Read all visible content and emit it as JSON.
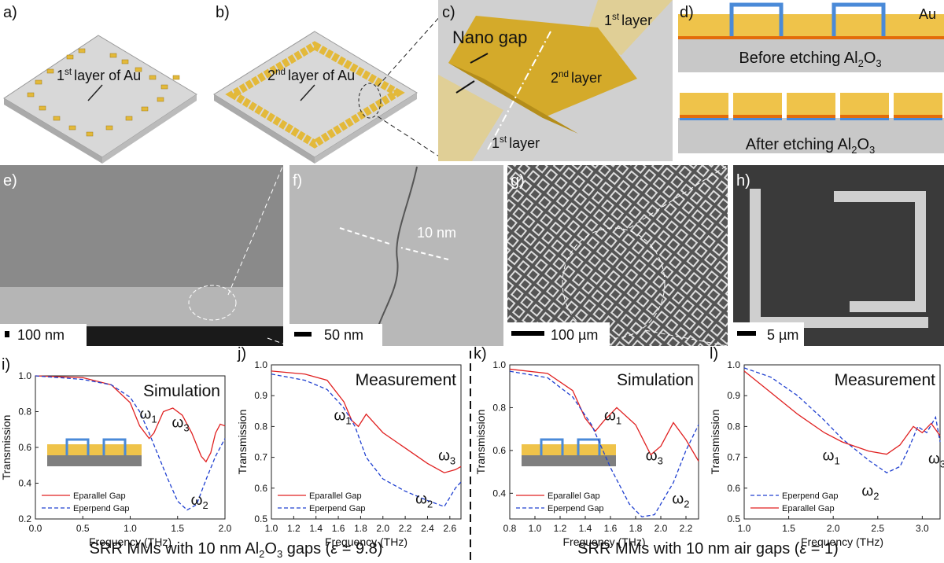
{
  "panels": {
    "a": {
      "label": "a)",
      "n": "1",
      "sup": "st",
      "text": "layer of Au"
    },
    "b": {
      "label": "b)",
      "n": "2",
      "sup": "nd",
      "text": "layer of Au"
    },
    "c": {
      "label": "c)",
      "gap": "Nano gap",
      "l1": {
        "n": "1",
        "sup": "st",
        "text": "layer"
      },
      "l2": {
        "n": "2",
        "sup": "nd",
        "text": "layer"
      }
    },
    "d": {
      "label": "d)",
      "au": "Au",
      "before": {
        "text": "Before etching Al",
        "s1": "2",
        "o": "O",
        "s2": "3"
      },
      "after": {
        "text": "After etching Al",
        "s1": "2",
        "o": "O",
        "s2": "3"
      }
    },
    "e": {
      "label": "e)",
      "scale": "100 nm"
    },
    "f": {
      "label": "f)",
      "gap": "10 nm",
      "scale": "50 nm"
    },
    "g": {
      "label": "g)",
      "scale": "100 µm"
    },
    "h": {
      "label": "h)",
      "scale": "5 µm"
    }
  },
  "captions": [
    {
      "text": "SRR MMs with 10 nm Al",
      "s1": "2",
      "o": "O",
      "s2": "3",
      "rest": " gaps (",
      "eps": "ε",
      "end": " = 9.8)"
    },
    {
      "text": "SRR MMs with 10 nm air gaps (",
      "eps": "ε",
      "end": " = 1)"
    }
  ],
  "chart_data": [
    {
      "type": "line",
      "panel": "i)",
      "title": "Simulation",
      "xlabel": "Frequency (THz)",
      "ylabel": "Transmission",
      "xlim": [
        0,
        2.0
      ],
      "xticks": [
        {
          "value": 0,
          "label": "0.0"
        },
        0.5,
        {
          "value": 1,
          "label": "1.0"
        },
        1.5,
        {
          "value": 2,
          "label": "2.0"
        }
      ],
      "ylim": [
        0.2,
        1.0
      ],
      "yticks": [
        0.2,
        0.4,
        0.6,
        0.8,
        {
          "value": 1,
          "label": "1.0"
        }
      ],
      "legend": "lower left",
      "annotations": [
        {
          "text": "ω",
          "sub": "1"
        },
        {
          "text": "ω",
          "sub": "3"
        },
        {
          "text": "ω",
          "sub": "2"
        }
      ],
      "series": [
        {
          "name": "Eparallel Gap",
          "color": "#e02020",
          "dash": false,
          "x": [
            0,
            0.5,
            0.8,
            1.0,
            1.1,
            1.2,
            1.25,
            1.35,
            1.45,
            1.55,
            1.65,
            1.75,
            1.8,
            1.85,
            1.9,
            1.95,
            2.0
          ],
          "values": [
            1.0,
            0.99,
            0.95,
            0.85,
            0.72,
            0.65,
            0.68,
            0.8,
            0.82,
            0.78,
            0.68,
            0.55,
            0.52,
            0.57,
            0.68,
            0.73,
            0.72
          ]
        },
        {
          "name": "Eperpend Gap",
          "color": "#2040d0",
          "dash": true,
          "x": [
            0,
            0.5,
            0.8,
            1.0,
            1.1,
            1.2,
            1.3,
            1.4,
            1.5,
            1.6,
            1.7,
            1.8,
            1.9,
            2.0
          ],
          "values": [
            1.0,
            0.98,
            0.95,
            0.88,
            0.8,
            0.68,
            0.55,
            0.42,
            0.3,
            0.25,
            0.28,
            0.42,
            0.55,
            0.65
          ]
        }
      ]
    },
    {
      "type": "line",
      "panel": "j)",
      "title": "Measurement",
      "xlabel": "Frequency (THz)",
      "ylabel": "Transmission",
      "xlim": [
        1.0,
        2.7
      ],
      "xticks": [
        {
          "value": 1,
          "label": "1.0"
        },
        1.2,
        1.4,
        1.6,
        1.8,
        {
          "value": 2,
          "label": "2.0"
        },
        2.2,
        2.4,
        2.6
      ],
      "ylim": [
        0.5,
        1.0
      ],
      "yticks": [
        0.5,
        0.6,
        0.7,
        0.8,
        0.9,
        {
          "value": 1,
          "label": "1.0"
        }
      ],
      "legend": "lower left",
      "annotations": [
        {
          "text": "ω",
          "sub": "1"
        },
        {
          "text": "ω",
          "sub": "3"
        },
        {
          "text": "ω",
          "sub": "2"
        }
      ],
      "series": [
        {
          "name": "Eparallel Gap",
          "color": "#e02020",
          "dash": false,
          "x": [
            1.0,
            1.3,
            1.5,
            1.65,
            1.72,
            1.78,
            1.85,
            2.0,
            2.2,
            2.4,
            2.55,
            2.65,
            2.7
          ],
          "values": [
            0.98,
            0.97,
            0.95,
            0.88,
            0.82,
            0.8,
            0.84,
            0.78,
            0.73,
            0.68,
            0.65,
            0.66,
            0.67
          ]
        },
        {
          "name": "Eperpend Gap",
          "color": "#2040d0",
          "dash": true,
          "x": [
            1.0,
            1.3,
            1.5,
            1.65,
            1.75,
            1.85,
            2.0,
            2.2,
            2.4,
            2.55,
            2.6,
            2.65,
            2.7
          ],
          "values": [
            0.97,
            0.95,
            0.92,
            0.86,
            0.8,
            0.7,
            0.63,
            0.59,
            0.56,
            0.54,
            0.57,
            0.6,
            0.62
          ]
        }
      ]
    },
    {
      "type": "line",
      "panel": "k)",
      "title": "Simulation",
      "xlabel": "Frequency (THz)",
      "ylabel": "Transmission",
      "xlim": [
        0.8,
        2.3
      ],
      "xticks": [
        0.8,
        {
          "value": 1,
          "label": "1.0"
        },
        1.2,
        1.4,
        1.6,
        1.8,
        {
          "value": 2,
          "label": "2.0"
        },
        2.2
      ],
      "ylim": [
        0.28,
        1.0
      ],
      "yticks": [
        0.4,
        0.6,
        0.8,
        {
          "value": 1,
          "label": "1.0"
        }
      ],
      "legend": "lower left",
      "annotations": [
        {
          "text": "ω",
          "sub": "1"
        },
        {
          "text": "ω",
          "sub": "3"
        },
        {
          "text": "ω",
          "sub": "2"
        }
      ],
      "series": [
        {
          "name": "Eparallel Gap",
          "color": "#e02020",
          "dash": false,
          "x": [
            0.8,
            1.1,
            1.3,
            1.4,
            1.48,
            1.55,
            1.65,
            1.8,
            1.92,
            2.0,
            2.1,
            2.2,
            2.3
          ],
          "values": [
            0.98,
            0.96,
            0.88,
            0.75,
            0.69,
            0.74,
            0.8,
            0.72,
            0.58,
            0.62,
            0.73,
            0.65,
            0.55
          ]
        },
        {
          "name": "Eperpend Gap",
          "color": "#2040d0",
          "dash": true,
          "x": [
            0.8,
            1.1,
            1.3,
            1.45,
            1.6,
            1.75,
            1.85,
            1.95,
            2.1,
            2.2,
            2.3
          ],
          "values": [
            0.97,
            0.94,
            0.85,
            0.72,
            0.52,
            0.35,
            0.29,
            0.3,
            0.45,
            0.6,
            0.72
          ]
        }
      ]
    },
    {
      "type": "line",
      "panel": "l)",
      "title": "Measurement",
      "xlabel": "Frequency (THz)",
      "ylabel": "Transmission",
      "xlim": [
        1.0,
        3.2
      ],
      "xticks": [
        {
          "value": 1,
          "label": "1.0"
        },
        1.5,
        {
          "value": 2,
          "label": "2.0"
        },
        2.5,
        {
          "value": 3,
          "label": "3.0"
        }
      ],
      "ylim": [
        0.5,
        1.0
      ],
      "yticks": [
        0.5,
        0.6,
        0.7,
        0.8,
        0.9,
        {
          "value": 1,
          "label": "1.0"
        }
      ],
      "legend": "lower left",
      "annotations": [
        {
          "text": "ω",
          "sub": "1"
        },
        {
          "text": "ω",
          "sub": "3"
        },
        {
          "text": "ω",
          "sub": "2"
        }
      ],
      "series": [
        {
          "name": "Eperpend Gap",
          "color": "#2040d0",
          "dash": true,
          "x": [
            1.0,
            1.3,
            1.6,
            1.9,
            2.1,
            2.4,
            2.6,
            2.75,
            2.85,
            2.95,
            3.05,
            3.15,
            3.2
          ],
          "values": [
            0.99,
            0.96,
            0.9,
            0.82,
            0.76,
            0.69,
            0.65,
            0.67,
            0.73,
            0.8,
            0.78,
            0.83,
            0.75
          ]
        },
        {
          "name": "Eparallel Gap",
          "color": "#e02020",
          "dash": false,
          "x": [
            1.0,
            1.3,
            1.6,
            1.9,
            2.1,
            2.4,
            2.6,
            2.75,
            2.9,
            3.0,
            3.1,
            3.2
          ],
          "values": [
            0.98,
            0.91,
            0.84,
            0.78,
            0.75,
            0.72,
            0.71,
            0.74,
            0.8,
            0.78,
            0.81,
            0.77
          ]
        }
      ]
    }
  ]
}
